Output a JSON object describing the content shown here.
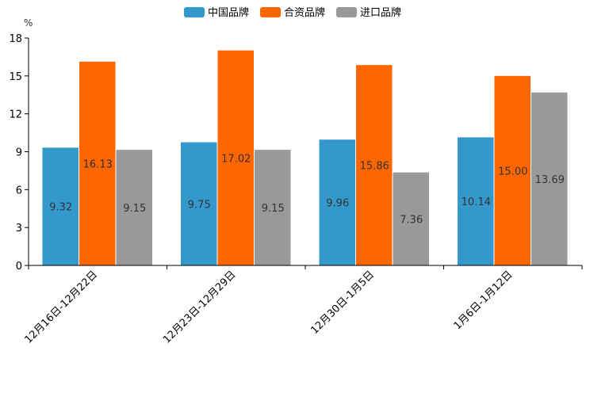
{
  "chart_data": {
    "type": "bar",
    "unit": "%",
    "categories": [
      "12月16日-12月22日",
      "12月23日-12月29日",
      "12月30日-1月5日",
      "1月6日-1月12日"
    ],
    "series": [
      {
        "name": "中国品牌",
        "color": "#3399cc",
        "values": [
          9.32,
          9.75,
          9.96,
          10.14
        ],
        "labels": [
          "9.32",
          "9.75",
          "9.96",
          "10.14"
        ]
      },
      {
        "name": "合资品牌",
        "color": "#ff6600",
        "values": [
          16.13,
          17.02,
          15.86,
          15.0
        ],
        "labels": [
          "16.13",
          "17.02",
          "15.86",
          "15.00"
        ]
      },
      {
        "name": "进口品牌",
        "color": "#999999",
        "values": [
          9.15,
          9.15,
          7.36,
          13.69
        ],
        "labels": [
          "9.15",
          "9.15",
          "7.36",
          "13.69"
        ]
      }
    ],
    "ylim": [
      0,
      18
    ],
    "yticks": [
      0,
      3,
      6,
      9,
      12,
      15,
      18
    ],
    "ytick_labels": [
      "0",
      "3",
      "6",
      "9",
      "12",
      "15",
      "18"
    ],
    "legend_position": "top-center",
    "grid": false
  }
}
